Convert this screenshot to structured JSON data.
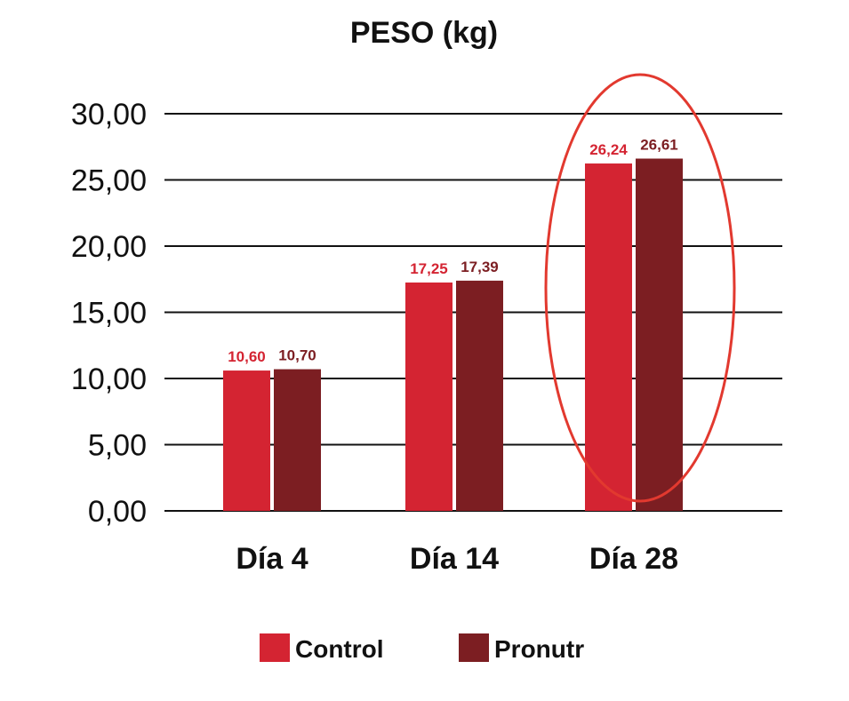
{
  "chart_data": {
    "type": "bar",
    "title": "PESO (kg)",
    "xlabel": "",
    "ylabel": "",
    "categories": [
      "Día 4",
      "Día 14",
      "Día 28"
    ],
    "series": [
      {
        "name": "Control",
        "color": "#d42432",
        "values": [
          10.6,
          17.25,
          26.24
        ],
        "labels": [
          "10,60",
          "17,25",
          "26,24"
        ]
      },
      {
        "name": "Pronutr",
        "color": "#7c1e22",
        "values": [
          10.7,
          17.39,
          26.61
        ],
        "labels": [
          "10,70",
          "17,39",
          "26,61"
        ]
      }
    ],
    "ylim": [
      0,
      30
    ],
    "yticks": [
      {
        "value": 0,
        "label": "0,00"
      },
      {
        "value": 5,
        "label": "5,00"
      },
      {
        "value": 10,
        "label": "10,00"
      },
      {
        "value": 15,
        "label": "15,00"
      },
      {
        "value": 20,
        "label": "20,00"
      },
      {
        "value": 25,
        "label": "25,00"
      },
      {
        "value": 30,
        "label": "30,00"
      }
    ],
    "grid": true,
    "legend_position": "bottom-center",
    "highlight": {
      "category": "Día 28",
      "shape": "ellipse",
      "color": "#e2392f"
    }
  }
}
